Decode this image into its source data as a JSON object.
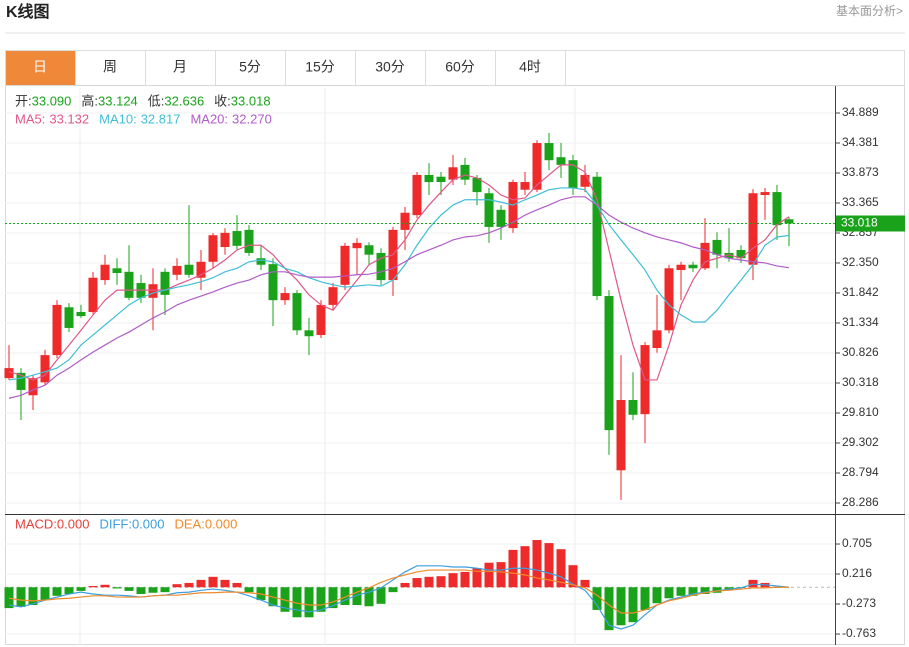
{
  "title": "K线图",
  "link": "基本面分析>",
  "tabs": [
    "日",
    "周",
    "月",
    "5分",
    "15分",
    "30分",
    "60分",
    "4时"
  ],
  "active_tab": 0,
  "active_color": "#f0883a",
  "chart_data": [
    {
      "type": "candlestick",
      "up_color": "#ee2a2a",
      "down_color": "#1aa31a",
      "legend": [
        {
          "label": "开:",
          "value": 33.09,
          "value_label": "33.090"
        },
        {
          "label": "高:",
          "value": 33.124
        },
        {
          "label": "低:",
          "value": 32.636
        },
        {
          "label": "收:",
          "value": 33.018
        }
      ],
      "legend_value_color": "#1aa31a",
      "open": [
        30.4,
        30.49,
        30.11,
        30.33,
        30.79,
        31.6,
        31.52,
        31.52,
        32.06,
        32.26,
        32.2,
        32.01,
        31.76,
        32.2,
        32.15,
        32.32,
        32.1,
        32.37,
        32.62,
        32.89,
        32.91,
        32.43,
        32.33,
        31.72,
        31.84,
        31.21,
        31.13,
        31.64,
        31.98,
        32.6,
        32.65,
        32.52,
        32.06,
        32.91,
        33.16,
        33.84,
        33.81,
        33.76,
        34.01,
        33.79,
        33.53,
        33.25,
        32.94,
        33.59,
        33.59,
        34.38,
        34.14,
        34.09,
        33.64,
        33.81,
        31.79,
        28.84,
        30.03,
        29.79,
        30.91,
        31.21,
        32.23,
        32.32,
        32.26,
        32.74,
        32.52,
        32.57,
        32.32,
        33.5,
        33.55,
        33.09
      ],
      "high": [
        30.96,
        30.57,
        30.45,
        30.88,
        31.72,
        31.67,
        31.64,
        32.2,
        32.49,
        32.43,
        32.65,
        32.15,
        32.26,
        32.26,
        32.43,
        33.33,
        32.57,
        32.86,
        32.94,
        33.16,
        32.99,
        32.65,
        32.43,
        31.94,
        31.89,
        31.42,
        31.72,
        32.01,
        32.69,
        32.77,
        32.7,
        32.6,
        32.96,
        33.3,
        33.89,
        34.04,
        33.89,
        34.18,
        34.13,
        33.84,
        33.62,
        33.33,
        33.76,
        33.89,
        34.43,
        34.55,
        34.38,
        34.18,
        34.01,
        33.89,
        31.89,
        30.79,
        30.5,
        31.01,
        31.81,
        32.32,
        32.37,
        32.37,
        33.11,
        32.87,
        32.94,
        32.65,
        33.6,
        33.62,
        33.67,
        33.124
      ],
      "low": [
        30.37,
        29.69,
        29.86,
        30.28,
        30.74,
        31.18,
        31.42,
        31.49,
        31.98,
        31.98,
        31.72,
        31.67,
        31.21,
        31.47,
        32.06,
        32.1,
        31.89,
        32.26,
        32.49,
        32.57,
        32.47,
        32.23,
        31.28,
        31.64,
        31.13,
        30.79,
        31.08,
        31.55,
        31.89,
        32.15,
        32.32,
        31.98,
        31.79,
        32.57,
        33.11,
        33.5,
        33.5,
        33.67,
        33.67,
        33.33,
        32.69,
        32.74,
        32.86,
        33.5,
        33.55,
        33.92,
        33.79,
        33.5,
        33.55,
        31.72,
        29.1,
        28.34,
        29.69,
        29.3,
        30.83,
        31.16,
        31.72,
        32.2,
        32.23,
        32.26,
        32.37,
        32.35,
        32.06,
        33.08,
        32.74,
        32.636
      ],
      "close": [
        30.57,
        30.2,
        30.4,
        30.79,
        31.64,
        31.25,
        31.45,
        32.1,
        32.32,
        32.18,
        31.76,
        31.76,
        31.99,
        31.81,
        32.3,
        32.15,
        32.37,
        32.82,
        32.86,
        32.64,
        32.52,
        32.32,
        31.72,
        31.84,
        31.21,
        31.11,
        31.64,
        31.94,
        32.64,
        32.69,
        32.49,
        32.06,
        32.91,
        33.2,
        33.84,
        33.72,
        33.72,
        33.97,
        33.76,
        33.55,
        32.96,
        32.96,
        33.72,
        33.72,
        34.38,
        34.09,
        34.01,
        33.62,
        33.84,
        31.79,
        29.52,
        30.03,
        29.78,
        30.96,
        31.21,
        32.26,
        32.32,
        32.26,
        32.69,
        32.49,
        32.43,
        32.43,
        33.53,
        33.55,
        32.99,
        33.018
      ],
      "series": [
        {
          "name": "MA5:",
          "color": "#e0588a",
          "last": 33.132,
          "values": [
            30.51,
            30.45,
            30.37,
            30.45,
            30.71,
            30.96,
            31.21,
            31.47,
            31.72,
            31.89,
            31.89,
            31.89,
            31.89,
            31.89,
            31.98,
            32.06,
            32.15,
            32.26,
            32.4,
            32.57,
            32.65,
            32.65,
            32.49,
            32.26,
            32.06,
            31.81,
            31.64,
            31.55,
            31.81,
            32.06,
            32.32,
            32.43,
            32.49,
            32.74,
            33.08,
            33.33,
            33.55,
            33.76,
            33.84,
            33.79,
            33.67,
            33.5,
            33.42,
            33.45,
            33.67,
            33.84,
            34.01,
            34.01,
            33.89,
            33.42,
            32.57,
            31.72,
            30.96,
            30.37,
            30.37,
            30.96,
            31.64,
            32.06,
            32.37,
            32.43,
            32.49,
            32.43,
            32.6,
            32.74,
            33.0,
            33.132
          ]
        },
        {
          "name": "MA10:",
          "color": "#3fbfd6",
          "last": 32.817,
          "values": [
            30.37,
            30.4,
            30.45,
            30.51,
            30.57,
            30.71,
            30.96,
            31.13,
            31.3,
            31.47,
            31.64,
            31.76,
            31.84,
            31.89,
            31.94,
            31.98,
            32.03,
            32.1,
            32.2,
            32.26,
            32.37,
            32.4,
            32.37,
            32.26,
            32.2,
            32.1,
            32.03,
            31.98,
            31.94,
            31.96,
            31.98,
            31.96,
            32.06,
            32.32,
            32.65,
            32.94,
            33.16,
            33.33,
            33.42,
            33.42,
            33.42,
            33.38,
            33.33,
            33.42,
            33.5,
            33.59,
            33.62,
            33.62,
            33.59,
            33.33,
            33.0,
            32.74,
            32.49,
            32.23,
            31.89,
            31.64,
            31.47,
            31.35,
            31.35,
            31.55,
            31.81,
            32.06,
            32.32,
            32.65,
            32.79,
            32.817
          ]
        },
        {
          "name": "MA20:",
          "color": "#b05cc8",
          "last": 32.27,
          "last_label": "32.270",
          "values": [
            30.06,
            30.11,
            30.2,
            30.28,
            30.45,
            30.57,
            30.71,
            30.84,
            30.96,
            31.08,
            31.18,
            31.3,
            31.42,
            31.52,
            31.64,
            31.72,
            31.79,
            31.86,
            31.94,
            32.01,
            32.06,
            32.15,
            32.2,
            32.2,
            32.15,
            32.11,
            32.11,
            32.11,
            32.13,
            32.15,
            32.16,
            32.2,
            32.26,
            32.37,
            32.49,
            32.57,
            32.65,
            32.74,
            32.79,
            32.81,
            32.86,
            32.94,
            33.04,
            33.16,
            33.25,
            33.33,
            33.42,
            33.47,
            33.47,
            33.33,
            33.16,
            33.04,
            32.94,
            32.86,
            32.79,
            32.74,
            32.69,
            32.62,
            32.57,
            32.49,
            32.43,
            32.4,
            32.37,
            32.35,
            32.3,
            32.27
          ]
        }
      ],
      "last_price": 33.018,
      "last_price_color": "#1aa31a",
      "ylim": [
        28.117,
        35.312
      ],
      "yticks": [
        34.889,
        34.381,
        33.873,
        33.365,
        32.857,
        {
          "value": 32.35,
          "label": "32.350"
        },
        31.842,
        31.334,
        30.826,
        30.318,
        {
          "value": 29.81,
          "label": "29.810"
        },
        29.302,
        28.794,
        28.286
      ],
      "grid": true
    },
    {
      "type": "macd",
      "up_color": "#ee2a2a",
      "down_color": "#1aa31a",
      "bars": {
        "name": "MACD:",
        "color": "#e8403a",
        "last": 0,
        "last_label": "0.000",
        "values": [
          -0.34,
          -0.32,
          -0.29,
          -0.21,
          -0.14,
          -0.11,
          -0.06,
          0.02,
          0.04,
          -0.02,
          -0.06,
          -0.11,
          -0.09,
          -0.08,
          0.05,
          0.07,
          0.12,
          0.17,
          0.12,
          0.07,
          -0.08,
          -0.21,
          -0.31,
          -0.4,
          -0.49,
          -0.49,
          -0.4,
          -0.34,
          -0.29,
          -0.29,
          -0.31,
          -0.27,
          -0.08,
          0.07,
          0.15,
          0.17,
          0.18,
          0.23,
          0.25,
          0.31,
          0.4,
          0.41,
          0.61,
          0.67,
          0.77,
          0.72,
          0.62,
          0.36,
          0.12,
          -0.37,
          -0.7,
          -0.62,
          -0.57,
          -0.37,
          -0.26,
          -0.18,
          -0.14,
          -0.14,
          -0.11,
          -0.09,
          -0.05,
          -0.01,
          0.12,
          0.07,
          -0.01,
          0
        ]
      },
      "series": [
        {
          "name": "DIFF:",
          "color": "#3d9fe0",
          "last": 0,
          "last_label": "0.000",
          "values": [
            -0.29,
            -0.32,
            -0.27,
            -0.21,
            -0.16,
            -0.11,
            -0.08,
            -0.11,
            -0.13,
            -0.13,
            -0.14,
            -0.16,
            -0.14,
            -0.13,
            -0.09,
            -0.08,
            -0.05,
            -0.03,
            -0.05,
            -0.08,
            -0.14,
            -0.21,
            -0.29,
            -0.34,
            -0.37,
            -0.4,
            -0.37,
            -0.3,
            -0.21,
            -0.13,
            -0.08,
            -0.01,
            0.12,
            0.25,
            0.35,
            0.35,
            0.35,
            0.33,
            0.33,
            0.31,
            0.28,
            0.28,
            0.31,
            0.31,
            0.28,
            0.23,
            0.17,
            0.05,
            -0.05,
            -0.29,
            -0.62,
            -0.68,
            -0.62,
            -0.45,
            -0.29,
            -0.21,
            -0.16,
            -0.11,
            -0.08,
            -0.06,
            -0.03,
            -0.01,
            0.05,
            0.04,
            0.02,
            0
          ]
        },
        {
          "name": "DEA:",
          "color": "#f08a2a",
          "last": 0,
          "last_label": "0.000",
          "values": [
            -0.18,
            -0.21,
            -0.22,
            -0.21,
            -0.19,
            -0.18,
            -0.16,
            -0.14,
            -0.14,
            -0.16,
            -0.16,
            -0.16,
            -0.14,
            -0.13,
            -0.13,
            -0.11,
            -0.09,
            -0.09,
            -0.08,
            -0.08,
            -0.09,
            -0.11,
            -0.16,
            -0.21,
            -0.26,
            -0.29,
            -0.29,
            -0.24,
            -0.16,
            -0.08,
            -0.01,
            0.08,
            0.15,
            0.2,
            0.25,
            0.28,
            0.28,
            0.28,
            0.28,
            0.26,
            0.26,
            0.25,
            0.23,
            0.2,
            0.15,
            0.12,
            0.08,
            0.04,
            -0.01,
            -0.13,
            -0.29,
            -0.42,
            -0.42,
            -0.37,
            -0.29,
            -0.22,
            -0.18,
            -0.13,
            -0.09,
            -0.06,
            -0.05,
            -0.03,
            -0.01,
            -0.01,
            0,
            0
          ]
        }
      ],
      "ylim": [
        -0.942,
        1.162
      ],
      "yticks": [
        0.705,
        0.216,
        -0.273,
        -0.763
      ],
      "grid": true
    }
  ]
}
